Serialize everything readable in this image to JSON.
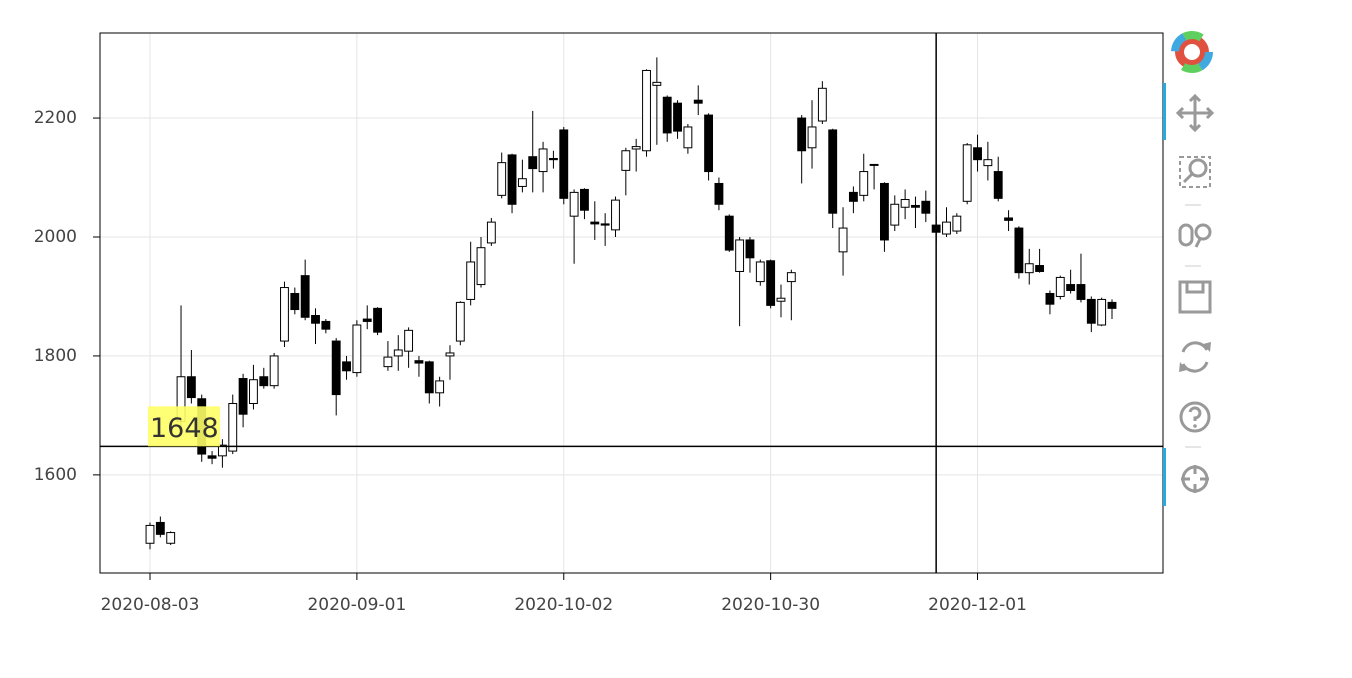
{
  "chart_data": {
    "type": "candlestick",
    "categories": [
      "2020-08-03",
      null,
      null,
      null,
      null,
      null,
      null,
      null,
      null,
      null,
      null,
      null,
      null,
      null,
      null,
      null,
      null,
      null,
      null,
      null,
      "2020-09-01",
      null,
      null,
      null,
      null,
      null,
      null,
      null,
      null,
      null,
      null,
      null,
      null,
      null,
      null,
      null,
      null,
      null,
      null,
      null,
      "2020-10-02",
      null,
      null,
      null,
      null,
      null,
      null,
      null,
      null,
      null,
      null,
      null,
      null,
      null,
      null,
      null,
      null,
      null,
      null,
      null,
      "2020-10-30",
      null,
      null,
      null,
      null,
      null,
      null,
      null,
      null,
      null,
      null,
      null,
      null,
      null,
      null,
      null,
      null,
      null,
      null,
      null,
      "2020-12-01",
      null,
      null,
      null,
      null,
      null,
      null,
      null,
      null,
      null,
      null,
      null,
      null,
      null
    ],
    "open": [
      1485,
      1520,
      1485,
      1690,
      1765,
      1728,
      1632,
      1632,
      1640,
      1762,
      1720,
      1765,
      1750,
      1825,
      1905,
      1935,
      1868,
      1858,
      1825,
      1790,
      1772,
      1862,
      1880,
      1782,
      1800,
      1808,
      1792,
      1790,
      1738,
      1800,
      1825,
      1895,
      1920,
      1990,
      2070,
      2138,
      2085,
      2135,
      2110,
      2132,
      2180,
      2035,
      2080,
      2025,
      2022,
      2012,
      2112,
      2148,
      2145,
      2255,
      2235,
      2225,
      2150,
      2230,
      2205,
      2090,
      2035,
      1942,
      1995,
      1925,
      1960,
      1892,
      1925,
      2200,
      2150,
      2195,
      2180,
      1975,
      2075,
      2070,
      2122,
      2090,
      2020,
      2050,
      2053,
      2060,
      2020,
      2005,
      2010,
      2060,
      2150,
      2120,
      2110,
      2032,
      2015,
      1940,
      1952,
      1905,
      1900,
      1920,
      1920,
      1895,
      1852,
      1890
    ],
    "high": [
      1520,
      1530,
      1505,
      1885,
      1810,
      1735,
      1640,
      1660,
      1735,
      1770,
      1785,
      1780,
      1805,
      1925,
      1915,
      1962,
      1880,
      1862,
      1830,
      1800,
      1860,
      1885,
      1882,
      1825,
      1835,
      1848,
      1800,
      1792,
      1765,
      1818,
      1892,
      1992,
      2000,
      2032,
      2142,
      2140,
      2130,
      2212,
      2160,
      2145,
      2185,
      2080,
      2082,
      2060,
      2040,
      2068,
      2150,
      2165,
      2282,
      2302,
      2238,
      2230,
      2190,
      2255,
      2208,
      2100,
      2038,
      2000,
      2000,
      1962,
      1962,
      1920,
      1945,
      2205,
      2230,
      2262,
      2182,
      2050,
      2085,
      2140,
      2122,
      2092,
      2070,
      2080,
      2068,
      2078,
      2035,
      2050,
      2040,
      2158,
      2172,
      2160,
      2135,
      2045,
      2018,
      1980,
      1980,
      1910,
      1935,
      1945,
      1972,
      1900,
      1898,
      1895
    ],
    "low": [
      1475,
      1495,
      1482,
      1680,
      1720,
      1622,
      1618,
      1612,
      1635,
      1680,
      1710,
      1745,
      1745,
      1815,
      1870,
      1860,
      1820,
      1838,
      1700,
      1760,
      1765,
      1845,
      1835,
      1775,
      1775,
      1780,
      1765,
      1720,
      1715,
      1760,
      1818,
      1885,
      1915,
      1985,
      2065,
      2040,
      2075,
      2075,
      2075,
      2115,
      2055,
      1955,
      2030,
      1995,
      1985,
      2000,
      2070,
      2110,
      2135,
      2155,
      2160,
      2165,
      2140,
      2205,
      2095,
      2045,
      1975,
      1850,
      1940,
      1918,
      1880,
      1865,
      1860,
      2090,
      2115,
      2190,
      2015,
      1935,
      2040,
      2060,
      2080,
      1975,
      2010,
      2030,
      2015,
      2025,
      1990,
      2000,
      2005,
      2055,
      2110,
      2095,
      2060,
      2010,
      1930,
      1920,
      1940,
      1870,
      1895,
      1905,
      1890,
      1840,
      1850,
      1862
    ],
    "close": [
      1515,
      1500,
      1503,
      1765,
      1730,
      1635,
      1628,
      1650,
      1720,
      1702,
      1760,
      1750,
      1800,
      1915,
      1878,
      1865,
      1855,
      1845,
      1735,
      1775,
      1852,
      1858,
      1840,
      1798,
      1810,
      1843,
      1788,
      1738,
      1758,
      1805,
      1890,
      1958,
      1982,
      2025,
      2125,
      2055,
      2098,
      2115,
      2148,
      2130,
      2065,
      2075,
      2045,
      2022,
      2020,
      2062,
      2145,
      2152,
      2280,
      2260,
      2175,
      2178,
      2185,
      2225,
      2110,
      2055,
      1978,
      1995,
      1965,
      1958,
      1885,
      1897,
      1940,
      2145,
      2185,
      2250,
      2040,
      2015,
      2060,
      2110,
      2122,
      1995,
      2055,
      2063,
      2050,
      2040,
      2008,
      2025,
      2035,
      2155,
      2130,
      2130,
      2065,
      2028,
      1940,
      1955,
      1942,
      1887,
      1932,
      1910,
      1895,
      1855,
      1895,
      1880
    ],
    "up_color": "#ffffff",
    "down_color": "#000000",
    "ylim": [
      1435,
      2343
    ],
    "yticks": [
      1600,
      1800,
      2000,
      2200
    ],
    "grid": true,
    "crosshair": {
      "x_index": 76,
      "y": 1648
    }
  }
}
